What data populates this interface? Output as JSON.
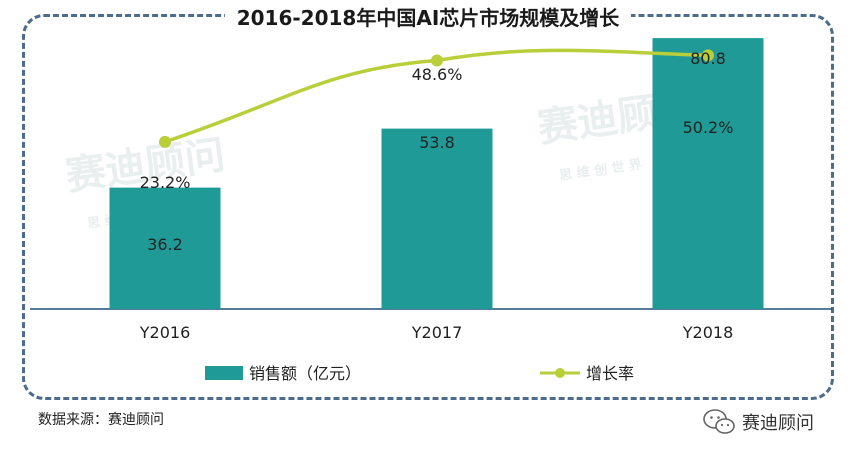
{
  "title": "2016-2018年中国AI芯片市场规模及增长",
  "source": "数据来源：赛迪顾问",
  "brand": "赛迪顾问",
  "watermark": {
    "main": "赛迪顾问",
    "sub": "思 维 创 世 界"
  },
  "colors": {
    "bar": "#1f9a96",
    "line": "#b9cf3a",
    "frame": "#4d6b8c"
  },
  "icons": {
    "brand": "wechat-icon"
  },
  "chart_data": {
    "type": "bar",
    "categories": [
      "Y2016",
      "Y2017",
      "Y2018"
    ],
    "series": [
      {
        "name": "销售额（亿元）",
        "type": "bar",
        "values": [
          36.2,
          53.8,
          80.8
        ],
        "labels": [
          "36.2",
          "53.8",
          "80.8"
        ]
      },
      {
        "name": "增长率",
        "type": "line",
        "values": [
          23.2,
          48.6,
          50.2
        ],
        "labels": [
          "23.2%",
          "48.6%",
          "50.2%"
        ]
      }
    ],
    "bar_ylim": [
      0,
      85
    ],
    "line_ylim": [
      -29,
      60
    ],
    "legend_position": "bottom",
    "grid": false
  }
}
